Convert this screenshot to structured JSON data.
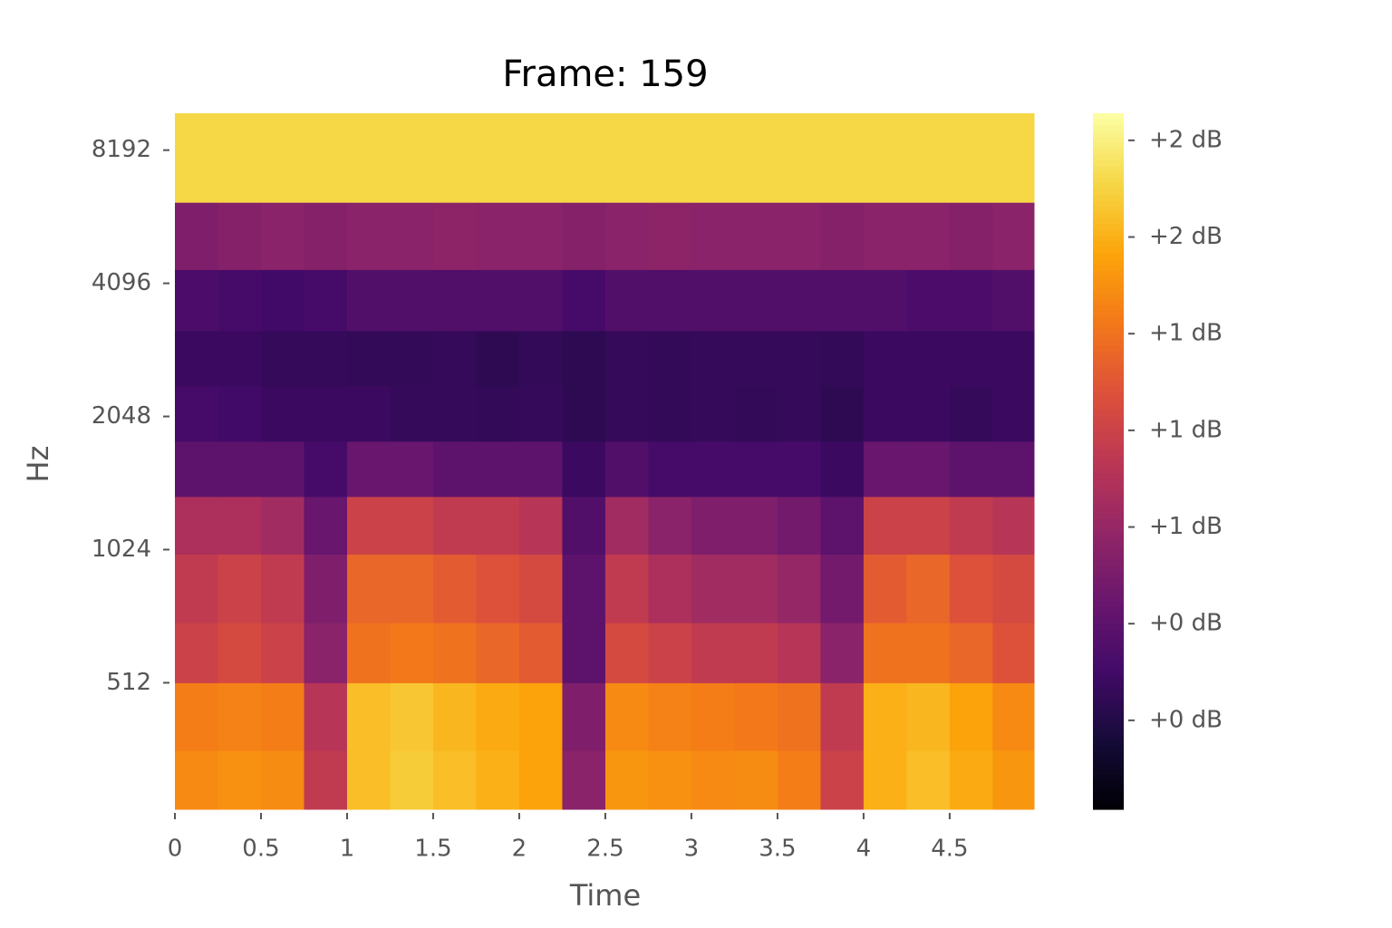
{
  "chart_data": {
    "type": "heatmap",
    "title": "Frame: 159",
    "xlabel": "Time",
    "ylabel": "Hz",
    "colormap": "inferno",
    "yscale": "log",
    "xlim": [
      0,
      4.99
    ],
    "xticks": [
      0,
      0.5,
      1,
      1.5,
      2,
      2.5,
      3,
      3.5,
      4,
      4.5
    ],
    "ylim": [
      265,
      9925
    ],
    "yticks": [
      512,
      1024,
      2048,
      4096,
      8192
    ],
    "clim": [
      0.02,
      1.82
    ],
    "cticks": [
      {
        "value": 0.25,
        "label": "+0 dB"
      },
      {
        "value": 0.5,
        "label": "+0 dB"
      },
      {
        "value": 0.75,
        "label": "+1 dB"
      },
      {
        "value": 1.0,
        "label": "+1 dB"
      },
      {
        "value": 1.25,
        "label": "+1 dB"
      },
      {
        "value": 1.5,
        "label": "+2 dB"
      },
      {
        "value": 1.75,
        "label": "+2 dB"
      }
    ],
    "x_bins": [
      0,
      0.25,
      0.5,
      0.75,
      1,
      1.25,
      1.5,
      1.75,
      2,
      2.25,
      2.5,
      2.75,
      3,
      3.25,
      3.5,
      3.75,
      4,
      4.25,
      4.5,
      4.75,
      4.99
    ],
    "y_bins": [
      265,
      360,
      512,
      700,
      1000,
      1350,
      1800,
      2400,
      3200,
      4400,
      6245,
      9925
    ],
    "values": [
      [
        1.35,
        1.38,
        1.36,
        0.95,
        1.55,
        1.6,
        1.55,
        1.5,
        1.45,
        0.7,
        1.4,
        1.38,
        1.35,
        1.36,
        1.3,
        1.0,
        1.5,
        1.55,
        1.48,
        1.4
      ],
      [
        1.3,
        1.32,
        1.3,
        0.9,
        1.55,
        1.58,
        1.52,
        1.48,
        1.45,
        0.65,
        1.35,
        1.32,
        1.3,
        1.28,
        1.25,
        0.95,
        1.5,
        1.52,
        1.45,
        1.35
      ],
      [
        1.0,
        1.05,
        1.0,
        0.7,
        1.25,
        1.28,
        1.25,
        1.2,
        1.15,
        0.5,
        1.05,
        1.0,
        0.95,
        0.95,
        0.9,
        0.7,
        1.25,
        1.25,
        1.2,
        1.1
      ],
      [
        0.95,
        1.0,
        0.95,
        0.65,
        1.2,
        1.2,
        1.15,
        1.1,
        1.05,
        0.5,
        0.95,
        0.85,
        0.8,
        0.8,
        0.75,
        0.6,
        1.15,
        1.2,
        1.1,
        1.05
      ],
      [
        0.85,
        0.85,
        0.8,
        0.55,
        1.0,
        1.0,
        0.95,
        0.95,
        0.9,
        0.45,
        0.8,
        0.7,
        0.65,
        0.65,
        0.6,
        0.5,
        1.0,
        1.0,
        0.95,
        0.9
      ],
      [
        0.5,
        0.5,
        0.5,
        0.4,
        0.55,
        0.55,
        0.5,
        0.5,
        0.5,
        0.35,
        0.45,
        0.4,
        0.4,
        0.4,
        0.4,
        0.35,
        0.55,
        0.55,
        0.5,
        0.5
      ],
      [
        0.4,
        0.38,
        0.35,
        0.35,
        0.35,
        0.33,
        0.33,
        0.32,
        0.33,
        0.3,
        0.33,
        0.32,
        0.33,
        0.32,
        0.33,
        0.3,
        0.35,
        0.35,
        0.33,
        0.35
      ],
      [
        0.35,
        0.35,
        0.33,
        0.33,
        0.32,
        0.32,
        0.33,
        0.3,
        0.32,
        0.3,
        0.33,
        0.32,
        0.33,
        0.33,
        0.33,
        0.32,
        0.35,
        0.35,
        0.35,
        0.35
      ],
      [
        0.42,
        0.4,
        0.38,
        0.4,
        0.45,
        0.45,
        0.45,
        0.45,
        0.45,
        0.4,
        0.45,
        0.45,
        0.45,
        0.45,
        0.45,
        0.45,
        0.45,
        0.42,
        0.42,
        0.45
      ],
      [
        0.65,
        0.68,
        0.7,
        0.68,
        0.7,
        0.7,
        0.72,
        0.7,
        0.7,
        0.68,
        0.7,
        0.72,
        0.7,
        0.7,
        0.7,
        0.68,
        0.7,
        0.7,
        0.68,
        0.7
      ],
      [
        1.64,
        1.64,
        1.64,
        1.64,
        1.64,
        1.64,
        1.64,
        1.64,
        1.64,
        1.64,
        1.64,
        1.64,
        1.64,
        1.64,
        1.64,
        1.64,
        1.64,
        1.64,
        1.64,
        1.64
      ]
    ]
  }
}
